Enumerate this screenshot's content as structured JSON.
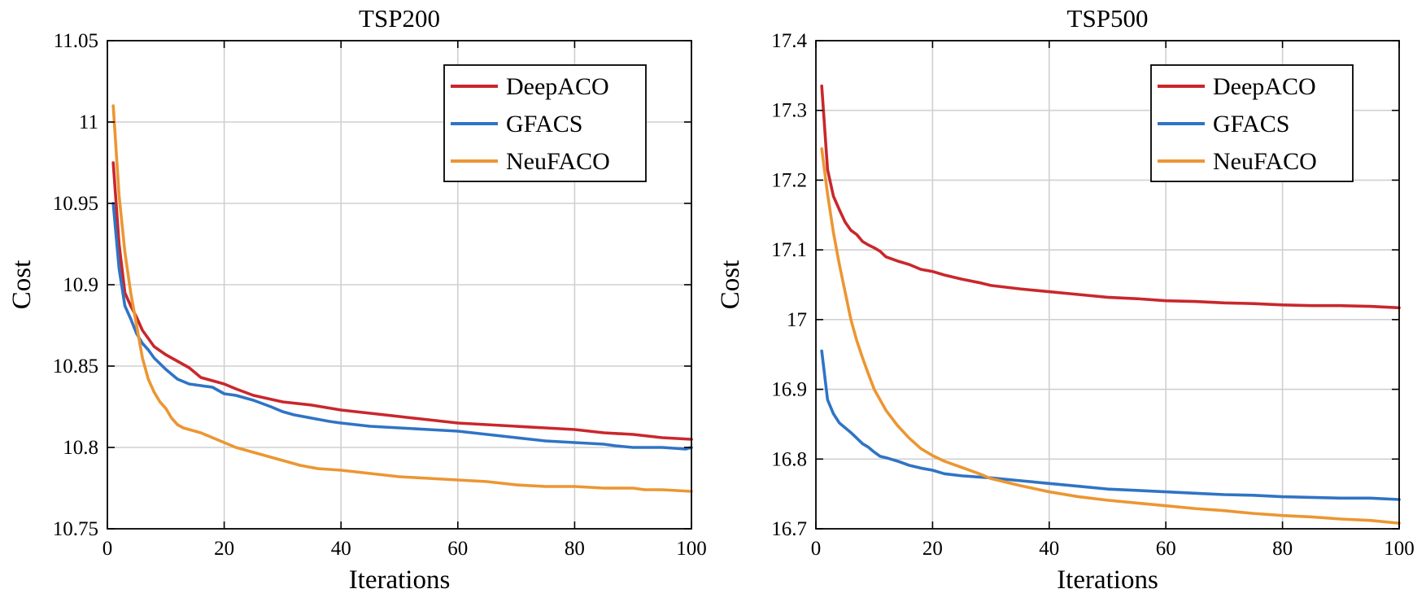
{
  "chart_data": [
    {
      "type": "line",
      "title": "TSP200",
      "xlabel": "Iterations",
      "ylabel": "Cost",
      "xlim": [
        0,
        100
      ],
      "ylim": [
        10.75,
        11.05
      ],
      "xticks": [
        0,
        20,
        40,
        60,
        80,
        100
      ],
      "xtick_labels": [
        "0",
        "20",
        "40",
        "60",
        "80",
        "100"
      ],
      "yticks": [
        10.75,
        10.8,
        10.85,
        10.9,
        10.95,
        11,
        11.05
      ],
      "ytick_labels": [
        "10.75",
        "10.8",
        "10.85",
        "10.9",
        "10.95",
        "11",
        "11.05"
      ],
      "grid": true,
      "legend_position": "top-right",
      "series": [
        {
          "name": "DeepACO",
          "color": "#c9272c",
          "x": [
            1,
            2,
            3,
            4,
            5,
            6,
            7,
            8,
            10,
            12,
            14,
            16,
            18,
            20,
            22,
            25,
            30,
            35,
            40,
            45,
            50,
            55,
            60,
            65,
            70,
            75,
            80,
            85,
            90,
            95,
            100
          ],
          "y": [
            10.975,
            10.925,
            10.895,
            10.887,
            10.88,
            10.872,
            10.867,
            10.862,
            10.857,
            10.853,
            10.849,
            10.843,
            10.841,
            10.839,
            10.836,
            10.832,
            10.828,
            10.826,
            10.823,
            10.821,
            10.819,
            10.817,
            10.815,
            10.814,
            10.813,
            10.812,
            10.811,
            10.809,
            10.808,
            10.806,
            10.805
          ]
        },
        {
          "name": "GFACS",
          "color": "#2f74c5",
          "x": [
            1,
            2,
            3,
            4,
            5,
            6,
            7,
            8,
            10,
            12,
            14,
            16,
            18,
            19,
            20,
            22,
            25,
            28,
            30,
            32,
            35,
            38,
            40,
            45,
            50,
            55,
            60,
            65,
            70,
            75,
            80,
            85,
            87,
            90,
            95,
            99,
            100
          ],
          "y": [
            10.95,
            10.91,
            10.887,
            10.879,
            10.87,
            10.864,
            10.86,
            10.855,
            10.848,
            10.842,
            10.839,
            10.838,
            10.837,
            10.835,
            10.833,
            10.832,
            10.829,
            10.825,
            10.822,
            10.82,
            10.818,
            10.816,
            10.815,
            10.813,
            10.812,
            10.811,
            10.81,
            10.808,
            10.806,
            10.804,
            10.803,
            10.802,
            10.801,
            10.8,
            10.8,
            10.799,
            10.8
          ]
        },
        {
          "name": "NeuFACO",
          "color": "#ec9632",
          "x": [
            1,
            2,
            3,
            4,
            5,
            6,
            7,
            8,
            9,
            10,
            11,
            12,
            13,
            14,
            15,
            16,
            18,
            20,
            22,
            25,
            28,
            30,
            33,
            36,
            40,
            45,
            50,
            55,
            60,
            65,
            70,
            75,
            80,
            85,
            90,
            92,
            95,
            100
          ],
          "y": [
            11.01,
            10.955,
            10.92,
            10.895,
            10.875,
            10.855,
            10.842,
            10.834,
            10.828,
            10.824,
            10.818,
            10.814,
            10.812,
            10.811,
            10.81,
            10.809,
            10.806,
            10.803,
            10.8,
            10.797,
            10.794,
            10.792,
            10.789,
            10.787,
            10.786,
            10.784,
            10.782,
            10.781,
            10.78,
            10.779,
            10.777,
            10.776,
            10.776,
            10.775,
            10.775,
            10.774,
            10.774,
            10.773
          ]
        }
      ]
    },
    {
      "type": "line",
      "title": "TSP500",
      "xlabel": "Iterations",
      "ylabel": "Cost",
      "xlim": [
        0,
        100
      ],
      "ylim": [
        16.7,
        17.4
      ],
      "xticks": [
        0,
        20,
        40,
        60,
        80,
        100
      ],
      "xtick_labels": [
        "0",
        "20",
        "40",
        "60",
        "80",
        "100"
      ],
      "yticks": [
        16.7,
        16.8,
        16.9,
        17,
        17.1,
        17.2,
        17.3,
        17.4
      ],
      "ytick_labels": [
        "16.7",
        "16.8",
        "16.9",
        "17",
        "17.1",
        "17.2",
        "17.3",
        "17.4"
      ],
      "grid": true,
      "legend_position": "top-right",
      "series": [
        {
          "name": "DeepACO",
          "color": "#c9272c",
          "x": [
            1,
            2,
            3,
            4,
            5,
            6,
            7,
            8,
            9,
            10,
            11,
            12,
            14,
            16,
            18,
            20,
            22,
            25,
            28,
            30,
            35,
            40,
            45,
            50,
            55,
            60,
            65,
            70,
            75,
            80,
            85,
            90,
            95,
            100
          ],
          "y": [
            17.335,
            17.215,
            17.177,
            17.158,
            17.14,
            17.128,
            17.122,
            17.112,
            17.107,
            17.103,
            17.098,
            17.09,
            17.084,
            17.079,
            17.072,
            17.069,
            17.064,
            17.058,
            17.053,
            17.049,
            17.044,
            17.04,
            17.036,
            17.032,
            17.03,
            17.027,
            17.026,
            17.024,
            17.023,
            17.021,
            17.02,
            17.02,
            17.019,
            17.017
          ]
        },
        {
          "name": "GFACS",
          "color": "#2f74c5",
          "x": [
            1,
            2,
            3,
            4,
            5,
            6,
            7,
            8,
            9,
            10,
            11,
            12,
            14,
            16,
            18,
            20,
            22,
            25,
            30,
            35,
            40,
            45,
            50,
            55,
            60,
            65,
            70,
            75,
            80,
            85,
            90,
            95,
            100
          ],
          "y": [
            16.955,
            16.885,
            16.865,
            16.852,
            16.845,
            16.838,
            16.83,
            16.822,
            16.817,
            16.81,
            16.804,
            16.802,
            16.797,
            16.791,
            16.787,
            16.784,
            16.779,
            16.776,
            16.773,
            16.769,
            16.765,
            16.761,
            16.757,
            16.755,
            16.753,
            16.751,
            16.749,
            16.748,
            16.746,
            16.745,
            16.744,
            16.744,
            16.742
          ]
        },
        {
          "name": "NeuFACO",
          "color": "#ec9632",
          "x": [
            1,
            2,
            3,
            4,
            5,
            6,
            7,
            8,
            9,
            10,
            12,
            14,
            16,
            18,
            20,
            22,
            25,
            28,
            30,
            35,
            40,
            45,
            50,
            55,
            60,
            65,
            70,
            75,
            80,
            85,
            90,
            95,
            100
          ],
          "y": [
            17.245,
            17.18,
            17.125,
            17.08,
            17.04,
            17.0,
            16.97,
            16.945,
            16.922,
            16.9,
            16.87,
            16.848,
            16.83,
            16.815,
            16.805,
            16.797,
            16.788,
            16.779,
            16.772,
            16.762,
            16.753,
            16.746,
            16.741,
            16.737,
            16.733,
            16.729,
            16.726,
            16.722,
            16.719,
            16.717,
            16.714,
            16.712,
            16.708
          ]
        }
      ]
    }
  ]
}
